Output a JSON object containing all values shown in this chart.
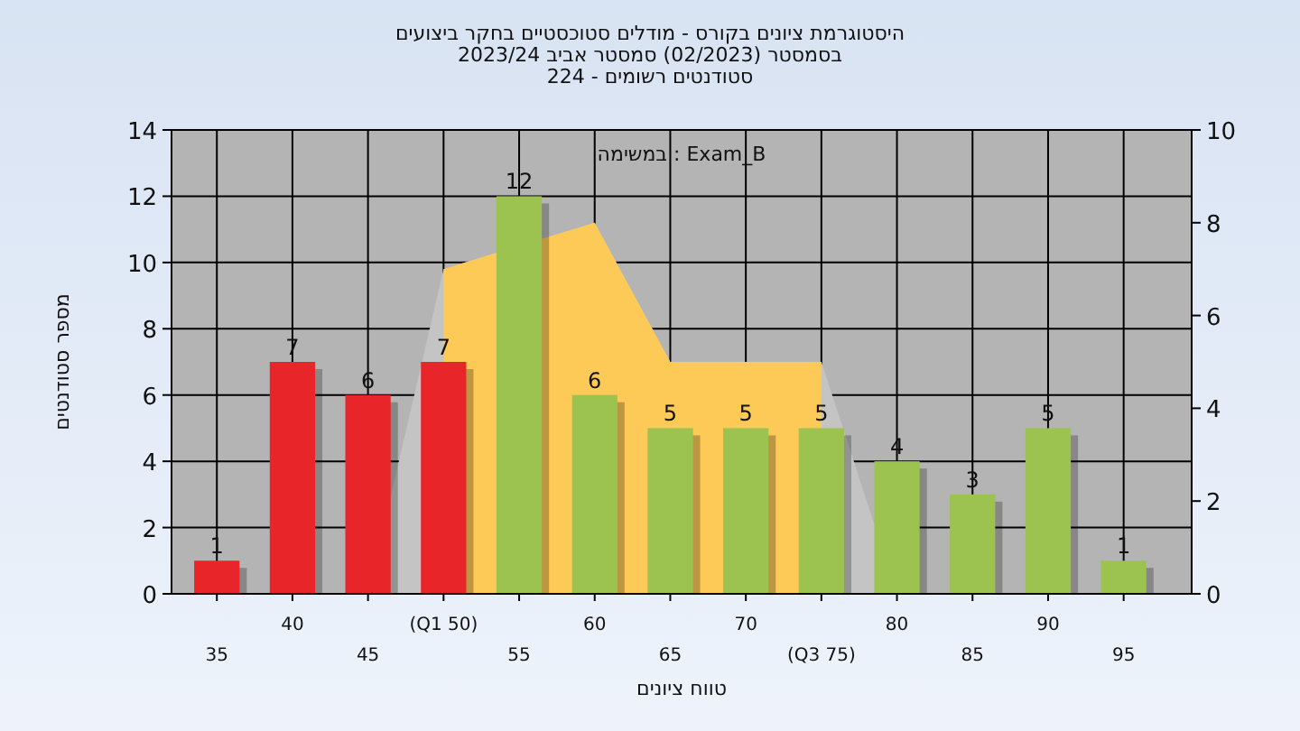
{
  "chart_data": {
    "type": "bar",
    "title": "היסטוגרמת ציונים בקורס - מודלים סטוכסטיים בחקר ביצועים",
    "subtitle": "בסמסטר (02/2023) סמסטר אביב 2023/24\nסטודנטים רשומים - 224",
    "annotations": [
      "Exam_B : במשימה"
    ],
    "xlabel": "טווח ציונים",
    "ylabel": "מספר סטודנטים",
    "categories": [
      "35",
      "40",
      "45",
      "(Q1 50)",
      "55",
      "60",
      "65",
      "70",
      "(Q3 75)",
      "80",
      "85",
      "90",
      "95"
    ],
    "series": [
      {
        "type": "area",
        "axis": "y2",
        "color": "#c4c4c4",
        "values": [
          null,
          null,
          0,
          7,
          null,
          8,
          5,
          5,
          5,
          0,
          null,
          null,
          null
        ]
      },
      {
        "type": "area",
        "axis": "y2",
        "color": "#fdc957",
        "values": [
          null,
          null,
          null,
          7,
          null,
          8,
          5,
          5,
          5,
          null,
          null,
          null,
          null
        ]
      },
      {
        "colors": [
          "#e8262a",
          "#e8262a",
          "#e8262a",
          "#e8262a",
          "#9cc250",
          "#9cc250",
          "#9cc250",
          "#9cc250",
          "#9cc250",
          "#9cc250",
          "#9cc250",
          "#9cc250",
          "#9cc250"
        ],
        "values": [
          1,
          7,
          6,
          7,
          12,
          6,
          5,
          5,
          5,
          4,
          3,
          5,
          1
        ],
        "value_labels": [
          "1",
          "7",
          "6",
          "7",
          "12",
          "6",
          "5",
          "5",
          "5",
          "4",
          "3",
          "5",
          "1"
        ]
      }
    ],
    "ylim": [
      0,
      14
    ],
    "yticks": [
      0,
      2,
      4,
      6,
      8,
      10,
      12,
      14
    ],
    "y2lim": [
      0,
      10
    ],
    "y2ticks": [
      0,
      2,
      4,
      6,
      8,
      10
    ],
    "grid": true
  }
}
